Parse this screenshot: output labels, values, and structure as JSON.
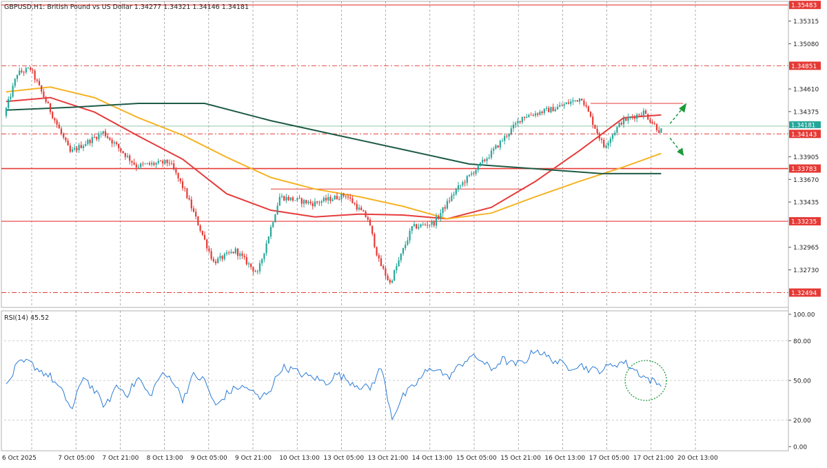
{
  "header": {
    "symbol_line": "GBPUSD,H1:  British Pound vs US Dollar  1.34277 1.34321 1.34146 1.34181"
  },
  "rsi_panel": {
    "label": "RSI(14) 45.52",
    "ticks": [
      "100.00",
      "80.00",
      "50.00",
      "20.00",
      "0.00"
    ]
  },
  "colors": {
    "bull_candle": "#26a69a",
    "bear_candle": "#e53935",
    "sma_red": "#e63a3a",
    "sma_orange": "#f5b324",
    "sma_darkgreen": "#1d5a44",
    "level_line": "#e53935",
    "rsi_line": "#2b7bd6",
    "arrow": "#1c9a3a",
    "price_badge_red": "#e53935",
    "price_badge_green": "#26a69a"
  },
  "chart_data": {
    "type": "candlestick",
    "symbol": "GBPUSD",
    "timeframe": "H1",
    "description": "British Pound vs US Dollar",
    "ohlc_last": {
      "open": 1.34277,
      "high": 1.34321,
      "low": 1.34146,
      "close": 1.34181
    },
    "price_axis": {
      "range": [
        1.3234,
        1.3552
      ],
      "ticks": [
        1.35315,
        1.3508,
        1.3461,
        1.34375,
        1.33905,
        1.3367,
        1.33435,
        1.32965,
        1.3273
      ]
    },
    "x_ticks": [
      "6 Oct 2025",
      "7 Oct 05:00",
      "7 Oct 21:00",
      "8 Oct 13:00",
      "9 Oct 05:00",
      "9 Oct 21:00",
      "10 Oct 13:00",
      "13 Oct 05:00",
      "13 Oct 21:00",
      "14 Oct 13:00",
      "15 Oct 05:00",
      "15 Oct 21:00",
      "16 Oct 13:00",
      "17 Oct 05:00",
      "17 Oct 21:00",
      "20 Oct 13:00"
    ],
    "horizontal_levels": [
      {
        "label": "1.35483",
        "value": 1.35483,
        "style": "solid"
      },
      {
        "label": "1.34851",
        "value": 1.34851,
        "style": "dashdot"
      },
      {
        "label": "1.34143",
        "value": 1.34143,
        "style": "dashdot"
      },
      {
        "label": "1.33783",
        "value": 1.33783,
        "style": "solid-thick"
      },
      {
        "label": "1.33235",
        "value": 1.33235,
        "style": "solid"
      },
      {
        "label": "1.32494",
        "value": 1.32494,
        "style": "dashdot"
      }
    ],
    "current_price_badge": "1.34181",
    "key_points": [
      {
        "time_index": 0,
        "price": 1.3433
      },
      {
        "time_index": 6,
        "price": 1.3477
      },
      {
        "time_index": 12,
        "price": 1.3482
      },
      {
        "time_index": 30,
        "price": 1.3395
      },
      {
        "time_index": 45,
        "price": 1.3416
      },
      {
        "time_index": 60,
        "price": 1.3381
      },
      {
        "time_index": 75,
        "price": 1.3385
      },
      {
        "time_index": 82,
        "price": 1.3355
      },
      {
        "time_index": 95,
        "price": 1.3281
      },
      {
        "time_index": 105,
        "price": 1.3293
      },
      {
        "time_index": 115,
        "price": 1.3269
      },
      {
        "time_index": 125,
        "price": 1.3349
      },
      {
        "time_index": 140,
        "price": 1.3342
      },
      {
        "time_index": 155,
        "price": 1.3351
      },
      {
        "time_index": 165,
        "price": 1.3326
      },
      {
        "time_index": 170,
        "price": 1.3282
      },
      {
        "time_index": 175,
        "price": 1.3259
      },
      {
        "time_index": 185,
        "price": 1.3317
      },
      {
        "time_index": 195,
        "price": 1.3322
      },
      {
        "time_index": 205,
        "price": 1.3356
      },
      {
        "time_index": 220,
        "price": 1.3392
      },
      {
        "time_index": 235,
        "price": 1.3432
      },
      {
        "time_index": 250,
        "price": 1.3441
      },
      {
        "time_index": 262,
        "price": 1.3452
      },
      {
        "time_index": 266,
        "price": 1.3431
      },
      {
        "time_index": 272,
        "price": 1.3401
      },
      {
        "time_index": 280,
        "price": 1.3427
      },
      {
        "time_index": 290,
        "price": 1.3437
      },
      {
        "time_index": 297,
        "price": 1.3418
      }
    ],
    "moving_averages": [
      {
        "color_key": "sma_red",
        "points": [
          [
            0,
            1.3448
          ],
          [
            20,
            1.3452
          ],
          [
            40,
            1.3437
          ],
          [
            60,
            1.3412
          ],
          [
            80,
            1.3388
          ],
          [
            100,
            1.3352
          ],
          [
            120,
            1.3335
          ],
          [
            140,
            1.3328
          ],
          [
            160,
            1.3331
          ],
          [
            180,
            1.333
          ],
          [
            200,
            1.3326
          ],
          [
            220,
            1.3338
          ],
          [
            240,
            1.3365
          ],
          [
            260,
            1.3397
          ],
          [
            280,
            1.3431
          ],
          [
            297,
            1.3434
          ]
        ]
      },
      {
        "color_key": "sma_orange",
        "points": [
          [
            0,
            1.3458
          ],
          [
            20,
            1.3463
          ],
          [
            40,
            1.3452
          ],
          [
            60,
            1.3431
          ],
          [
            80,
            1.3413
          ],
          [
            100,
            1.339
          ],
          [
            120,
            1.3369
          ],
          [
            140,
            1.3357
          ],
          [
            160,
            1.3349
          ],
          [
            180,
            1.3339
          ],
          [
            200,
            1.3326
          ],
          [
            220,
            1.3332
          ],
          [
            240,
            1.3349
          ],
          [
            260,
            1.3365
          ],
          [
            280,
            1.338
          ],
          [
            297,
            1.3394
          ]
        ]
      },
      {
        "color_key": "sma_darkgreen",
        "points": [
          [
            0,
            1.3439
          ],
          [
            30,
            1.3442
          ],
          [
            60,
            1.3446
          ],
          [
            90,
            1.3446
          ],
          [
            120,
            1.3428
          ],
          [
            150,
            1.3413
          ],
          [
            180,
            1.3398
          ],
          [
            210,
            1.3383
          ],
          [
            240,
            1.3378
          ],
          [
            270,
            1.3373
          ],
          [
            297,
            1.3373
          ]
        ]
      }
    ],
    "rsi": {
      "period": 14,
      "last": 45.52,
      "range": [
        0,
        100
      ],
      "levels": [
        80,
        50,
        20
      ],
      "key_points": [
        [
          0,
          45
        ],
        [
          5,
          62
        ],
        [
          10,
          64
        ],
        [
          15,
          58
        ],
        [
          20,
          53
        ],
        [
          25,
          42
        ],
        [
          30,
          28
        ],
        [
          35,
          54
        ],
        [
          40,
          42
        ],
        [
          45,
          30
        ],
        [
          50,
          46
        ],
        [
          55,
          40
        ],
        [
          60,
          52
        ],
        [
          65,
          38
        ],
        [
          70,
          54
        ],
        [
          75,
          52
        ],
        [
          80,
          36
        ],
        [
          85,
          54
        ],
        [
          90,
          50
        ],
        [
          95,
          30
        ],
        [
          100,
          40
        ],
        [
          105,
          45
        ],
        [
          110,
          44
        ],
        [
          115,
          36
        ],
        [
          120,
          44
        ],
        [
          125,
          60
        ],
        [
          130,
          58
        ],
        [
          135,
          54
        ],
        [
          140,
          52
        ],
        [
          145,
          48
        ],
        [
          150,
          55
        ],
        [
          155,
          50
        ],
        [
          160,
          46
        ],
        [
          165,
          44
        ],
        [
          170,
          60
        ],
        [
          175,
          22
        ],
        [
          180,
          38
        ],
        [
          185,
          46
        ],
        [
          190,
          56
        ],
        [
          195,
          60
        ],
        [
          200,
          52
        ],
        [
          205,
          60
        ],
        [
          210,
          68
        ],
        [
          215,
          66
        ],
        [
          220,
          58
        ],
        [
          225,
          66
        ],
        [
          230,
          62
        ],
        [
          235,
          64
        ],
        [
          240,
          74
        ],
        [
          245,
          68
        ],
        [
          250,
          64
        ],
        [
          255,
          60
        ],
        [
          260,
          62
        ],
        [
          265,
          58
        ],
        [
          270,
          58
        ],
        [
          275,
          62
        ],
        [
          280,
          64
        ],
        [
          285,
          58
        ],
        [
          290,
          52
        ],
        [
          295,
          48
        ],
        [
          297,
          45.52
        ]
      ]
    },
    "annotations": [
      {
        "type": "arrow",
        "direction": "up"
      },
      {
        "type": "arrow",
        "direction": "down"
      },
      {
        "type": "circle",
        "panel": "rsi"
      }
    ]
  }
}
